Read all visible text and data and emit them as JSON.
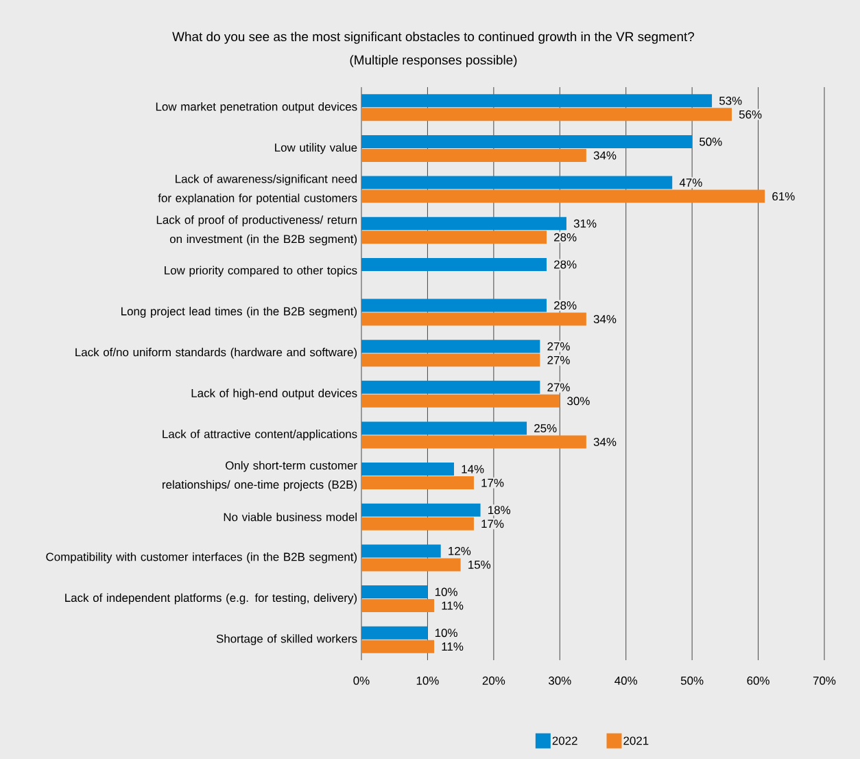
{
  "chart_data": {
    "type": "bar",
    "orientation": "horizontal",
    "title": "What do you see as the most significant obstacles to continued growth in the VR segment?",
    "subtitle": "(Multiple responses possible)",
    "categories": [
      "Low market penetration output devices",
      "Low utility value",
      "Lack of awareness/significant need for explanation for potential customers",
      "Lack of proof of productiveness/ return on investment (in the B2B segment)",
      "Low priority compared to other topics",
      "Long project lead times (in the B2B segment)",
      "Lack of/no uniform standards (hardware and software)",
      "Lack of high-end output devices",
      "Lack of attractive content/applications",
      "Only short-term customer relationships/ one-time projects (B2B)",
      "No viable business model",
      "Compatibility with customer interfaces (in the B2B segment)",
      "Lack of independent platforms (e.g. for testing, delivery)",
      "Shortage of skilled workers"
    ],
    "series": [
      {
        "name": "2022",
        "color": "#0088d1",
        "values": [
          53,
          50,
          47,
          31,
          28,
          28,
          27,
          27,
          25,
          14,
          18,
          12,
          10,
          10
        ],
        "value_labels": [
          "53%",
          "50%",
          "47%",
          "31%",
          "28%",
          "28%",
          "27%",
          "27%",
          "25%",
          "14%",
          "18%",
          "12%",
          "10%",
          "10%"
        ]
      },
      {
        "name": "2021",
        "color": "#f28322",
        "values": [
          56,
          34,
          61,
          28,
          null,
          34,
          27,
          30,
          34,
          17,
          17,
          15,
          11,
          11
        ],
        "value_labels": [
          "56%",
          "34%",
          "61%",
          "28%",
          null,
          "34%",
          "27%",
          "30%",
          "34%",
          "17%",
          "17%",
          "15%",
          "11%",
          "11%"
        ]
      }
    ],
    "xlim": [
      0,
      70
    ],
    "xticks": [
      {
        "value": 0,
        "label": "0%"
      },
      {
        "value": 10,
        "label": "10%"
      },
      {
        "value": 20,
        "label": "20%"
      },
      {
        "value": 30,
        "label": "30%"
      },
      {
        "value": 40,
        "label": "40%"
      },
      {
        "value": 50,
        "label": "50%"
      },
      {
        "value": 60,
        "label": "60%"
      },
      {
        "value": 70,
        "label": "70%"
      }
    ],
    "grid": "x",
    "legend": "bottom"
  }
}
